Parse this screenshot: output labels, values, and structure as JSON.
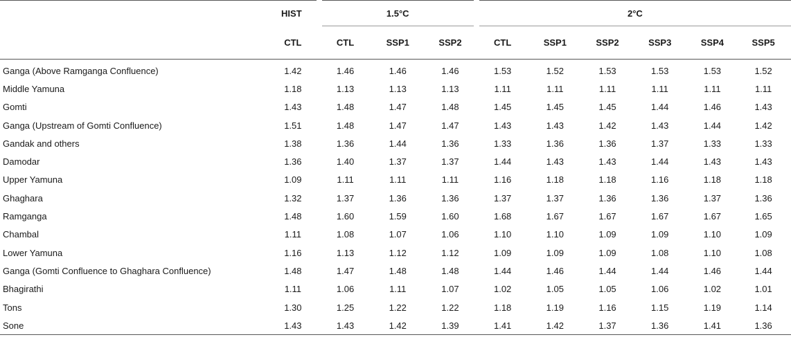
{
  "header": {
    "row1": {
      "hist": "HIST",
      "g15": "1.5°C",
      "g2": "2°C"
    },
    "row2": [
      "CTL",
      "CTL",
      "SSP1",
      "SSP2",
      "CTL",
      "SSP1",
      "SSP2",
      "SSP3",
      "SSP4",
      "SSP5"
    ]
  },
  "rows": [
    {
      "name": "Ganga (Above Ramganga Confluence)",
      "values": [
        "1.42",
        "1.46",
        "1.46",
        "1.46",
        "1.53",
        "1.52",
        "1.53",
        "1.53",
        "1.53",
        "1.52"
      ]
    },
    {
      "name": "Middle Yamuna",
      "values": [
        "1.18",
        "1.13",
        "1.13",
        "1.13",
        "1.11",
        "1.11",
        "1.11",
        "1.11",
        "1.11",
        "1.11"
      ]
    },
    {
      "name": "Gomti",
      "values": [
        "1.43",
        "1.48",
        "1.47",
        "1.48",
        "1.45",
        "1.45",
        "1.45",
        "1.44",
        "1.46",
        "1.43"
      ]
    },
    {
      "name": "Ganga (Upstream of Gomti Confluence)",
      "values": [
        "1.51",
        "1.48",
        "1.47",
        "1.47",
        "1.43",
        "1.43",
        "1.42",
        "1.43",
        "1.44",
        "1.42"
      ]
    },
    {
      "name": "Gandak and others",
      "values": [
        "1.38",
        "1.36",
        "1.44",
        "1.36",
        "1.33",
        "1.36",
        "1.36",
        "1.37",
        "1.33",
        "1.33"
      ]
    },
    {
      "name": "Damodar",
      "values": [
        "1.36",
        "1.40",
        "1.37",
        "1.37",
        "1.44",
        "1.43",
        "1.43",
        "1.44",
        "1.43",
        "1.43"
      ]
    },
    {
      "name": "Upper Yamuna",
      "values": [
        "1.09",
        "1.11",
        "1.11",
        "1.11",
        "1.16",
        "1.18",
        "1.18",
        "1.16",
        "1.18",
        "1.18"
      ]
    },
    {
      "name": "Ghaghara",
      "values": [
        "1.32",
        "1.37",
        "1.36",
        "1.36",
        "1.37",
        "1.37",
        "1.36",
        "1.36",
        "1.37",
        "1.36"
      ]
    },
    {
      "name": "Ramganga",
      "values": [
        "1.48",
        "1.60",
        "1.59",
        "1.60",
        "1.68",
        "1.67",
        "1.67",
        "1.67",
        "1.67",
        "1.65"
      ]
    },
    {
      "name": "Chambal",
      "values": [
        "1.11",
        "1.08",
        "1.07",
        "1.06",
        "1.10",
        "1.10",
        "1.09",
        "1.09",
        "1.10",
        "1.09"
      ]
    },
    {
      "name": "Lower Yamuna",
      "values": [
        "1.16",
        "1.13",
        "1.12",
        "1.12",
        "1.09",
        "1.09",
        "1.09",
        "1.08",
        "1.10",
        "1.08"
      ]
    },
    {
      "name": "Ganga (Gomti Confluence to Ghaghara Confluence)",
      "values": [
        "1.48",
        "1.47",
        "1.48",
        "1.48",
        "1.44",
        "1.46",
        "1.44",
        "1.44",
        "1.46",
        "1.44"
      ]
    },
    {
      "name": "Bhagirathi",
      "values": [
        "1.11",
        "1.06",
        "1.11",
        "1.07",
        "1.02",
        "1.05",
        "1.05",
        "1.06",
        "1.02",
        "1.01"
      ]
    },
    {
      "name": "Tons",
      "values": [
        "1.30",
        "1.25",
        "1.22",
        "1.22",
        "1.18",
        "1.19",
        "1.16",
        "1.15",
        "1.19",
        "1.14"
      ]
    },
    {
      "name": "Sone",
      "values": [
        "1.43",
        "1.43",
        "1.42",
        "1.39",
        "1.41",
        "1.42",
        "1.37",
        "1.36",
        "1.41",
        "1.36"
      ]
    }
  ]
}
